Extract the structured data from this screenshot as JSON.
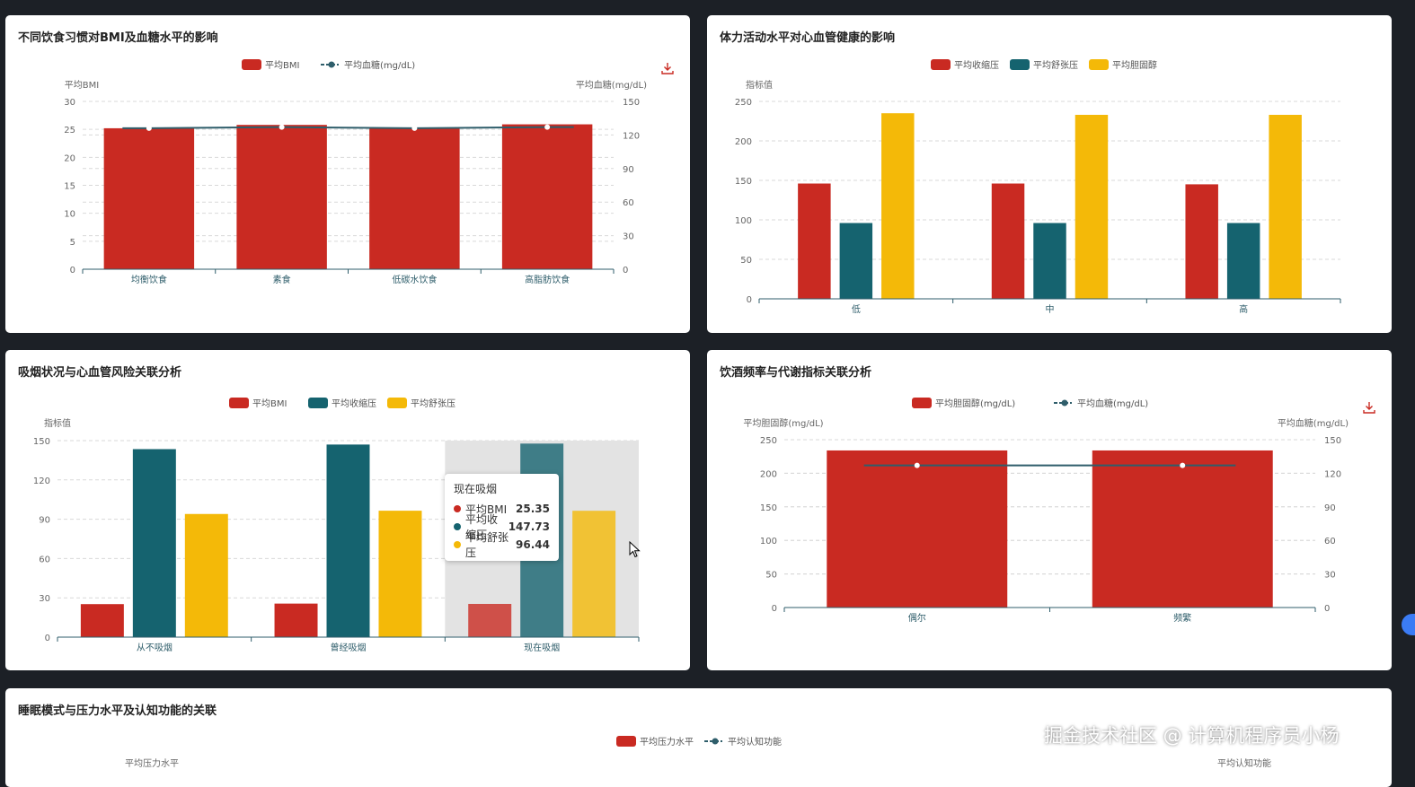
{
  "page_header": "",
  "watermark": "掘金技术社区 @ 计算机程序员小杨",
  "colors": {
    "red": "#c92a22",
    "teal": "#15636f",
    "yellow": "#f4b908",
    "line": "#2f5e6b",
    "axis": "#2f5e6b",
    "grid": "#d9d9d9"
  },
  "chart_data": [
    {
      "id": "diet",
      "type": "bar",
      "title": "不同饮食习惯对BMI及血糖水平的影响",
      "categories": [
        "均衡饮食",
        "素食",
        "低碳水饮食",
        "高脂肪饮食"
      ],
      "series": [
        {
          "name": "平均BMI",
          "kind": "bar",
          "axis": "left",
          "values": [
            25.2,
            25.8,
            25.3,
            25.9
          ]
        },
        {
          "name": "平均血糖(mg/dL)",
          "kind": "line",
          "axis": "right",
          "values": [
            126,
            127,
            126,
            127
          ]
        }
      ],
      "y_left": {
        "label": "平均BMI",
        "min": 0,
        "max": 30,
        "ticks": [
          0,
          5,
          10,
          15,
          20,
          25,
          30
        ]
      },
      "y_right": {
        "label": "平均血糖(mg/dL)",
        "min": 0,
        "max": 150,
        "ticks": [
          0,
          30,
          60,
          90,
          120,
          150
        ]
      },
      "legend_position": "top-center",
      "grid": true,
      "download_icon": "download-icon"
    },
    {
      "id": "activity",
      "type": "bar",
      "title": "体力活动水平对心血管健康的影响",
      "categories": [
        "低",
        "中",
        "高"
      ],
      "series": [
        {
          "name": "平均收缩压",
          "kind": "bar",
          "values": [
            146,
            146,
            145
          ]
        },
        {
          "name": "平均舒张压",
          "kind": "bar",
          "values": [
            96,
            96,
            96
          ]
        },
        {
          "name": "平均胆固醇",
          "kind": "bar",
          "values": [
            235,
            233,
            233
          ]
        }
      ],
      "y_left": {
        "label": "指标值",
        "min": 0,
        "max": 250,
        "ticks": [
          0,
          50,
          100,
          150,
          200,
          250
        ]
      },
      "legend_position": "top-center",
      "grid": true
    },
    {
      "id": "smoking",
      "type": "bar",
      "title": "吸烟状况与心血管风险关联分析",
      "categories": [
        "从不吸烟",
        "曾经吸烟",
        "现在吸烟"
      ],
      "series": [
        {
          "name": "平均BMI",
          "kind": "bar",
          "values": [
            25.2,
            25.6,
            25.35
          ]
        },
        {
          "name": "平均收缩压",
          "kind": "bar",
          "values": [
            143.5,
            147,
            147.73
          ]
        },
        {
          "name": "平均舒张压",
          "kind": "bar",
          "values": [
            94,
            96.5,
            96.44
          ]
        }
      ],
      "y_left": {
        "label": "指标值",
        "min": 0,
        "max": 150,
        "ticks": [
          0,
          30,
          60,
          90,
          120,
          150
        ]
      },
      "legend_position": "top-center",
      "grid": true,
      "highlighted_category": 2,
      "tooltip": {
        "title": "现在吸烟",
        "rows": [
          {
            "name": "平均BMI",
            "value": "25.35"
          },
          {
            "name": "平均收缩压",
            "value": "147.73"
          },
          {
            "name": "平均舒张压",
            "value": "96.44"
          }
        ]
      }
    },
    {
      "id": "drinking",
      "type": "bar",
      "title": "饮酒频率与代谢指标关联分析",
      "categories": [
        "偶尔",
        "频繁"
      ],
      "series": [
        {
          "name": "平均胆固醇(mg/dL)",
          "kind": "bar",
          "axis": "left",
          "values": [
            234,
            234
          ]
        },
        {
          "name": "平均血糖(mg/dL)",
          "kind": "line",
          "axis": "right",
          "values": [
            127,
            127
          ]
        }
      ],
      "y_left": {
        "label": "平均胆固醇(mg/dL)",
        "min": 0,
        "max": 250,
        "ticks": [
          0,
          50,
          100,
          150,
          200,
          250
        ]
      },
      "y_right": {
        "label": "平均血糖(mg/dL)",
        "min": 0,
        "max": 150,
        "ticks": [
          0,
          30,
          60,
          90,
          120,
          150
        ]
      },
      "legend_position": "top-center",
      "grid": true,
      "download_icon": "download-icon"
    },
    {
      "id": "sleep",
      "type": "bar",
      "title": "睡眠模式与压力水平及认知功能的关联",
      "categories": [],
      "series": [
        {
          "name": "平均压力水平",
          "kind": "bar",
          "axis": "left",
          "values": []
        },
        {
          "name": "平均认知功能",
          "kind": "line",
          "axis": "right",
          "values": []
        }
      ],
      "y_left": {
        "label": "平均压力水平"
      },
      "y_right": {
        "label": "平均认知功能"
      },
      "legend_position": "top-center",
      "grid": true
    }
  ]
}
